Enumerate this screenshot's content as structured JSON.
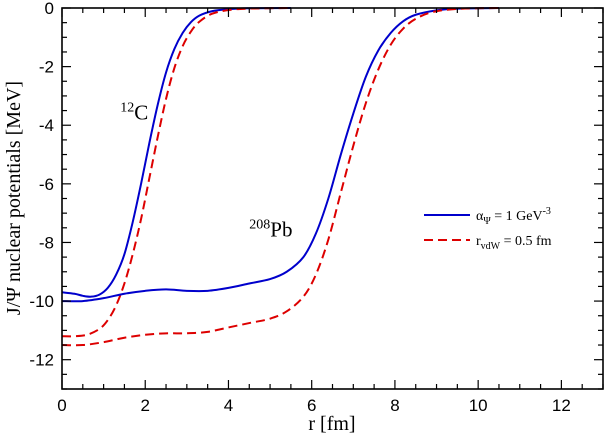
{
  "chart_data": {
    "type": "line",
    "title": "",
    "xlabel": "r [fm]",
    "ylabel": "J/Ψ nuclear potentials [MeV]",
    "xlim": [
      0,
      13
    ],
    "ylim": [
      -13,
      0
    ],
    "x_ticks": [
      "0",
      "2",
      "4",
      "6",
      "8",
      "10",
      "12"
    ],
    "y_ticks": [
      "0",
      "-2",
      "-4",
      "-6",
      "-8",
      "-10",
      "-12"
    ],
    "grid": false,
    "legend_position": "right",
    "legend": [
      {
        "name": "αΨ = 1 GeV-3",
        "main": "α",
        "sub": "Ψ",
        "rest": " = 1 GeV",
        "sup": "-3",
        "color": "#0000cc",
        "style": "solid"
      },
      {
        "name": "rvdW = 0.5 fm",
        "main": "r",
        "sub": "vdW",
        "rest": " = 0.5 fm",
        "sup": "",
        "color": "#dd0000",
        "style": "dashed"
      }
    ],
    "annotations": [
      {
        "sup": "12",
        "base": "C",
        "x": 1.4,
        "y": -3.8
      },
      {
        "sup": "208",
        "base": "Pb",
        "x": 4.5,
        "y": -7.8
      }
    ],
    "series": [
      {
        "name": "12C αΨ = 1 GeV-3",
        "color": "#0000cc",
        "style": "solid",
        "points": [
          [
            0,
            -9.7
          ],
          [
            0.3,
            -9.75
          ],
          [
            0.5,
            -9.82
          ],
          [
            0.7,
            -9.85
          ],
          [
            0.9,
            -9.78
          ],
          [
            1.1,
            -9.55
          ],
          [
            1.3,
            -9.1
          ],
          [
            1.5,
            -8.4
          ],
          [
            1.7,
            -7.3
          ],
          [
            1.9,
            -6.0
          ],
          [
            2.1,
            -4.6
          ],
          [
            2.3,
            -3.3
          ],
          [
            2.5,
            -2.2
          ],
          [
            2.7,
            -1.4
          ],
          [
            2.9,
            -0.85
          ],
          [
            3.1,
            -0.48
          ],
          [
            3.3,
            -0.26
          ],
          [
            3.6,
            -0.11
          ],
          [
            4.0,
            -0.04
          ],
          [
            4.5,
            -0.01
          ],
          [
            5.5,
            0
          ]
        ]
      },
      {
        "name": "12C rvdW = 0.5 fm",
        "color": "#dd0000",
        "style": "dashed",
        "points": [
          [
            0,
            -11.2
          ],
          [
            0.3,
            -11.2
          ],
          [
            0.6,
            -11.15
          ],
          [
            0.9,
            -10.95
          ],
          [
            1.1,
            -10.65
          ],
          [
            1.3,
            -10.15
          ],
          [
            1.5,
            -9.4
          ],
          [
            1.7,
            -8.4
          ],
          [
            1.9,
            -7.2
          ],
          [
            2.1,
            -5.8
          ],
          [
            2.3,
            -4.4
          ],
          [
            2.5,
            -3.1
          ],
          [
            2.7,
            -2.05
          ],
          [
            2.9,
            -1.3
          ],
          [
            3.1,
            -0.8
          ],
          [
            3.3,
            -0.47
          ],
          [
            3.6,
            -0.2
          ],
          [
            4.0,
            -0.07
          ],
          [
            4.5,
            -0.02
          ],
          [
            5.5,
            0
          ]
        ]
      },
      {
        "name": "208Pb αΨ = 1 GeV-3",
        "color": "#0000cc",
        "style": "solid",
        "points": [
          [
            0,
            -10.0
          ],
          [
            0.5,
            -10.0
          ],
          [
            1.0,
            -9.9
          ],
          [
            1.5,
            -9.75
          ],
          [
            2.0,
            -9.65
          ],
          [
            2.5,
            -9.6
          ],
          [
            3.0,
            -9.65
          ],
          [
            3.5,
            -9.65
          ],
          [
            4.0,
            -9.55
          ],
          [
            4.5,
            -9.4
          ],
          [
            5.0,
            -9.25
          ],
          [
            5.4,
            -9.0
          ],
          [
            5.8,
            -8.5
          ],
          [
            6.1,
            -7.7
          ],
          [
            6.4,
            -6.5
          ],
          [
            6.7,
            -5.0
          ],
          [
            7.0,
            -3.6
          ],
          [
            7.3,
            -2.35
          ],
          [
            7.6,
            -1.45
          ],
          [
            7.9,
            -0.85
          ],
          [
            8.2,
            -0.45
          ],
          [
            8.5,
            -0.23
          ],
          [
            9.0,
            -0.08
          ],
          [
            9.5,
            -0.02
          ],
          [
            10.5,
            0
          ]
        ]
      },
      {
        "name": "208Pb rvdW = 0.5 fm",
        "color": "#dd0000",
        "style": "dashed",
        "points": [
          [
            0,
            -11.5
          ],
          [
            0.5,
            -11.5
          ],
          [
            1.0,
            -11.4
          ],
          [
            1.5,
            -11.25
          ],
          [
            2.0,
            -11.15
          ],
          [
            2.5,
            -11.1
          ],
          [
            3.0,
            -11.1
          ],
          [
            3.5,
            -11.05
          ],
          [
            4.0,
            -10.9
          ],
          [
            4.5,
            -10.75
          ],
          [
            5.0,
            -10.6
          ],
          [
            5.4,
            -10.35
          ],
          [
            5.8,
            -9.85
          ],
          [
            6.1,
            -9.1
          ],
          [
            6.4,
            -7.9
          ],
          [
            6.7,
            -6.3
          ],
          [
            7.0,
            -4.7
          ],
          [
            7.3,
            -3.25
          ],
          [
            7.6,
            -2.1
          ],
          [
            7.9,
            -1.25
          ],
          [
            8.2,
            -0.7
          ],
          [
            8.5,
            -0.37
          ],
          [
            8.9,
            -0.14
          ],
          [
            9.5,
            -0.03
          ],
          [
            10.5,
            0
          ]
        ]
      }
    ]
  }
}
